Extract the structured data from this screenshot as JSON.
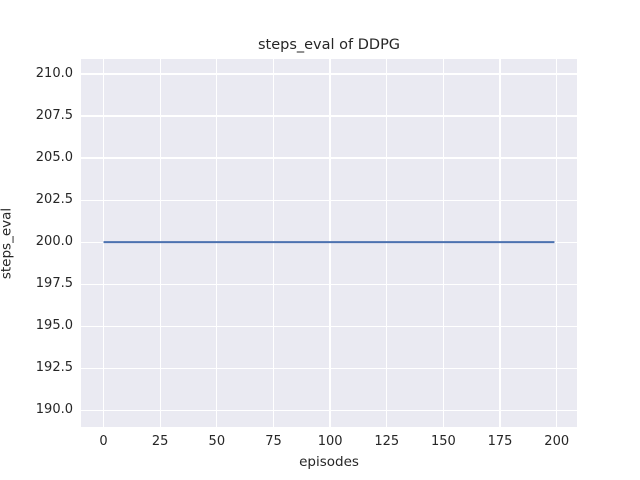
{
  "figure": {
    "background": "#ffffff"
  },
  "chart_data": {
    "type": "line",
    "title": "steps_eval of DDPG",
    "xlabel": "episodes",
    "ylabel": "steps_eval",
    "series": [
      {
        "name": "steps_eval",
        "color": "#4c72b0",
        "line_width": 2,
        "x": [
          0,
          199
        ],
        "y": [
          200,
          200
        ],
        "note": "constant value 200 for every episode from 0 to 199"
      }
    ],
    "xticks": [
      0,
      25,
      50,
      75,
      100,
      125,
      150,
      175,
      200
    ],
    "xtick_labels": [
      "0",
      "25",
      "50",
      "75",
      "100",
      "125",
      "150",
      "175",
      "200"
    ],
    "yticks": [
      190.0,
      192.5,
      195.0,
      197.5,
      200.0,
      202.5,
      205.0,
      207.5,
      210.0
    ],
    "ytick_labels": [
      "190.0",
      "192.5",
      "195.0",
      "197.5",
      "200.0",
      "202.5",
      "205.0",
      "207.5",
      "210.0"
    ],
    "xlim": [
      -9.95,
      208.95
    ],
    "ylim": [
      189.0,
      210.9
    ],
    "grid": true,
    "legend": false,
    "style": {
      "plot_background": "#eaeaf2",
      "grid_color": "#ffffff",
      "text_color": "#262626",
      "spines": "none"
    }
  }
}
